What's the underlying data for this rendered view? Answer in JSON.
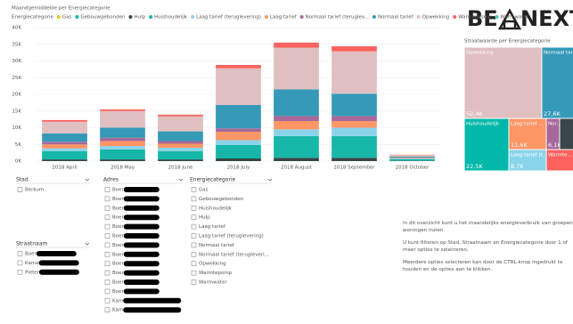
{
  "chart_data": [
    {
      "type": "bar",
      "stacked": true,
      "title": "Maandgemiddelde per Energiecategorie",
      "legend_title": "Energiecategorie",
      "categories": [
        "2018 April",
        "2018 May",
        "2018 June",
        "2018 July",
        "2018 August",
        "2018 September",
        "2018 October"
      ],
      "series": [
        {
          "name": "Gas",
          "color": "#f2c80f",
          "values": [
            0,
            0,
            0,
            0,
            0,
            0,
            0
          ]
        },
        {
          "name": "Gebouwgebonden",
          "color": "#01b8aa",
          "values": [
            0,
            0,
            0,
            0,
            0,
            0,
            0
          ]
        },
        {
          "name": "Hulp",
          "color": "#374649",
          "values": [
            500,
            500,
            500,
            800,
            1000,
            1000,
            100
          ]
        },
        {
          "name": "Huishoudelijk",
          "color": "#16b7a8",
          "values": [
            2500,
            3000,
            2500,
            4000,
            6500,
            6500,
            500
          ]
        },
        {
          "name": "Laag tarief (teruglevering)",
          "color": "#8ad4eb",
          "values": [
            800,
            1000,
            1000,
            1500,
            2000,
            2500,
            200
          ]
        },
        {
          "name": "Laag tarief",
          "color": "#fe9666",
          "values": [
            1200,
            1500,
            1200,
            2500,
            2500,
            2000,
            200
          ]
        },
        {
          "name": "Normaal tarief (teruglev...",
          "color": "#a66999",
          "values": [
            800,
            1000,
            800,
            1000,
            1500,
            1500,
            100
          ]
        },
        {
          "name": "Normaal tarief",
          "color": "#3599b8",
          "values": [
            2500,
            3000,
            2900,
            7000,
            8000,
            6700,
            300
          ]
        },
        {
          "name": "Opwekking",
          "color": "#dfbfbf",
          "values": [
            3500,
            5000,
            4500,
            11000,
            12500,
            12700,
            400
          ]
        },
        {
          "name": "Warmtepomp",
          "color": "#fd625e",
          "values": [
            500,
            500,
            500,
            1000,
            1500,
            1500,
            100
          ]
        },
        {
          "name": "Warmwater",
          "color": "#4ac5bb",
          "values": [
            0,
            0,
            0,
            0,
            0,
            0,
            0
          ]
        }
      ],
      "ylim": [
        0,
        40000
      ],
      "yticks": [
        {
          "value": 0,
          "label": "0K"
        },
        {
          "value": 5000,
          "label": "5K"
        },
        {
          "value": 10000,
          "label": "10K"
        },
        {
          "value": 15000,
          "label": "15K"
        },
        {
          "value": 20000,
          "label": "20K"
        },
        {
          "value": 25000,
          "label": "25K"
        },
        {
          "value": 30000,
          "label": "30K"
        },
        {
          "value": 35000,
          "label": "35K"
        },
        {
          "value": 40000,
          "label": "40K"
        }
      ],
      "grid": true
    },
    {
      "type": "treemap",
      "title": "Straatwaarde per Energiecategorie",
      "categories": [
        "Opwekking",
        "Normaal tarief",
        "Huishoudelijk",
        "Laag tarief ...",
        "Nor...",
        null,
        "Laag tarief (t...",
        "Warmte..."
      ],
      "values": [
        52400,
        27600,
        22500,
        11600,
        6100,
        3000,
        8700,
        3000
      ],
      "value_labels": [
        "52,4K",
        "27,6K",
        "22,5K",
        "11,6K",
        "6,1K",
        null,
        "8,7K",
        null
      ],
      "colors": [
        "#dfbfbf",
        "#3599b8",
        "#01b8aa",
        "#fe9666",
        "#a66999",
        "#374649",
        "#8ad4eb",
        "#fd625e"
      ]
    }
  ],
  "logo": {
    "left": "BE",
    "right": "NEXT"
  },
  "slicers": [
    {
      "title": "Stad",
      "items": [
        "Berkum"
      ]
    },
    {
      "title": "Adres",
      "items": [
        "Boer",
        "Boer",
        "Boer",
        "Boer",
        "Boer",
        "Boer",
        "Boer",
        "Boer",
        "Boer",
        "Boer",
        "Boer",
        "Boer",
        "Kam",
        "Kam"
      ]
    },
    {
      "title": "Energiecategorie",
      "items": [
        "Gas",
        "Gebouwgebonden",
        "Huishoudelijk",
        "Hulp",
        "Laag tarief",
        "Laag tarief (teruglevering)",
        "Normaal tarief",
        "Normaal tarief (terugleveri...",
        "Opwekking",
        "Warmtepomp",
        "Warmwater"
      ]
    },
    {
      "title": "Straatnaam",
      "items": [
        "Boer",
        "Kame",
        "Pieter"
      ]
    }
  ],
  "description": [
    "In dit overzicht kunt u het maandelijks energieverbruik van groepen woningen inzien.",
    "U kunt filteren op Stad, Straatnaam en Energiecategorie door 1 of meer opties te selecteren.",
    "Meerdere opties selecteren kan door de CTRL-knop ingedrukt te houden en de opties aan te klikken."
  ]
}
